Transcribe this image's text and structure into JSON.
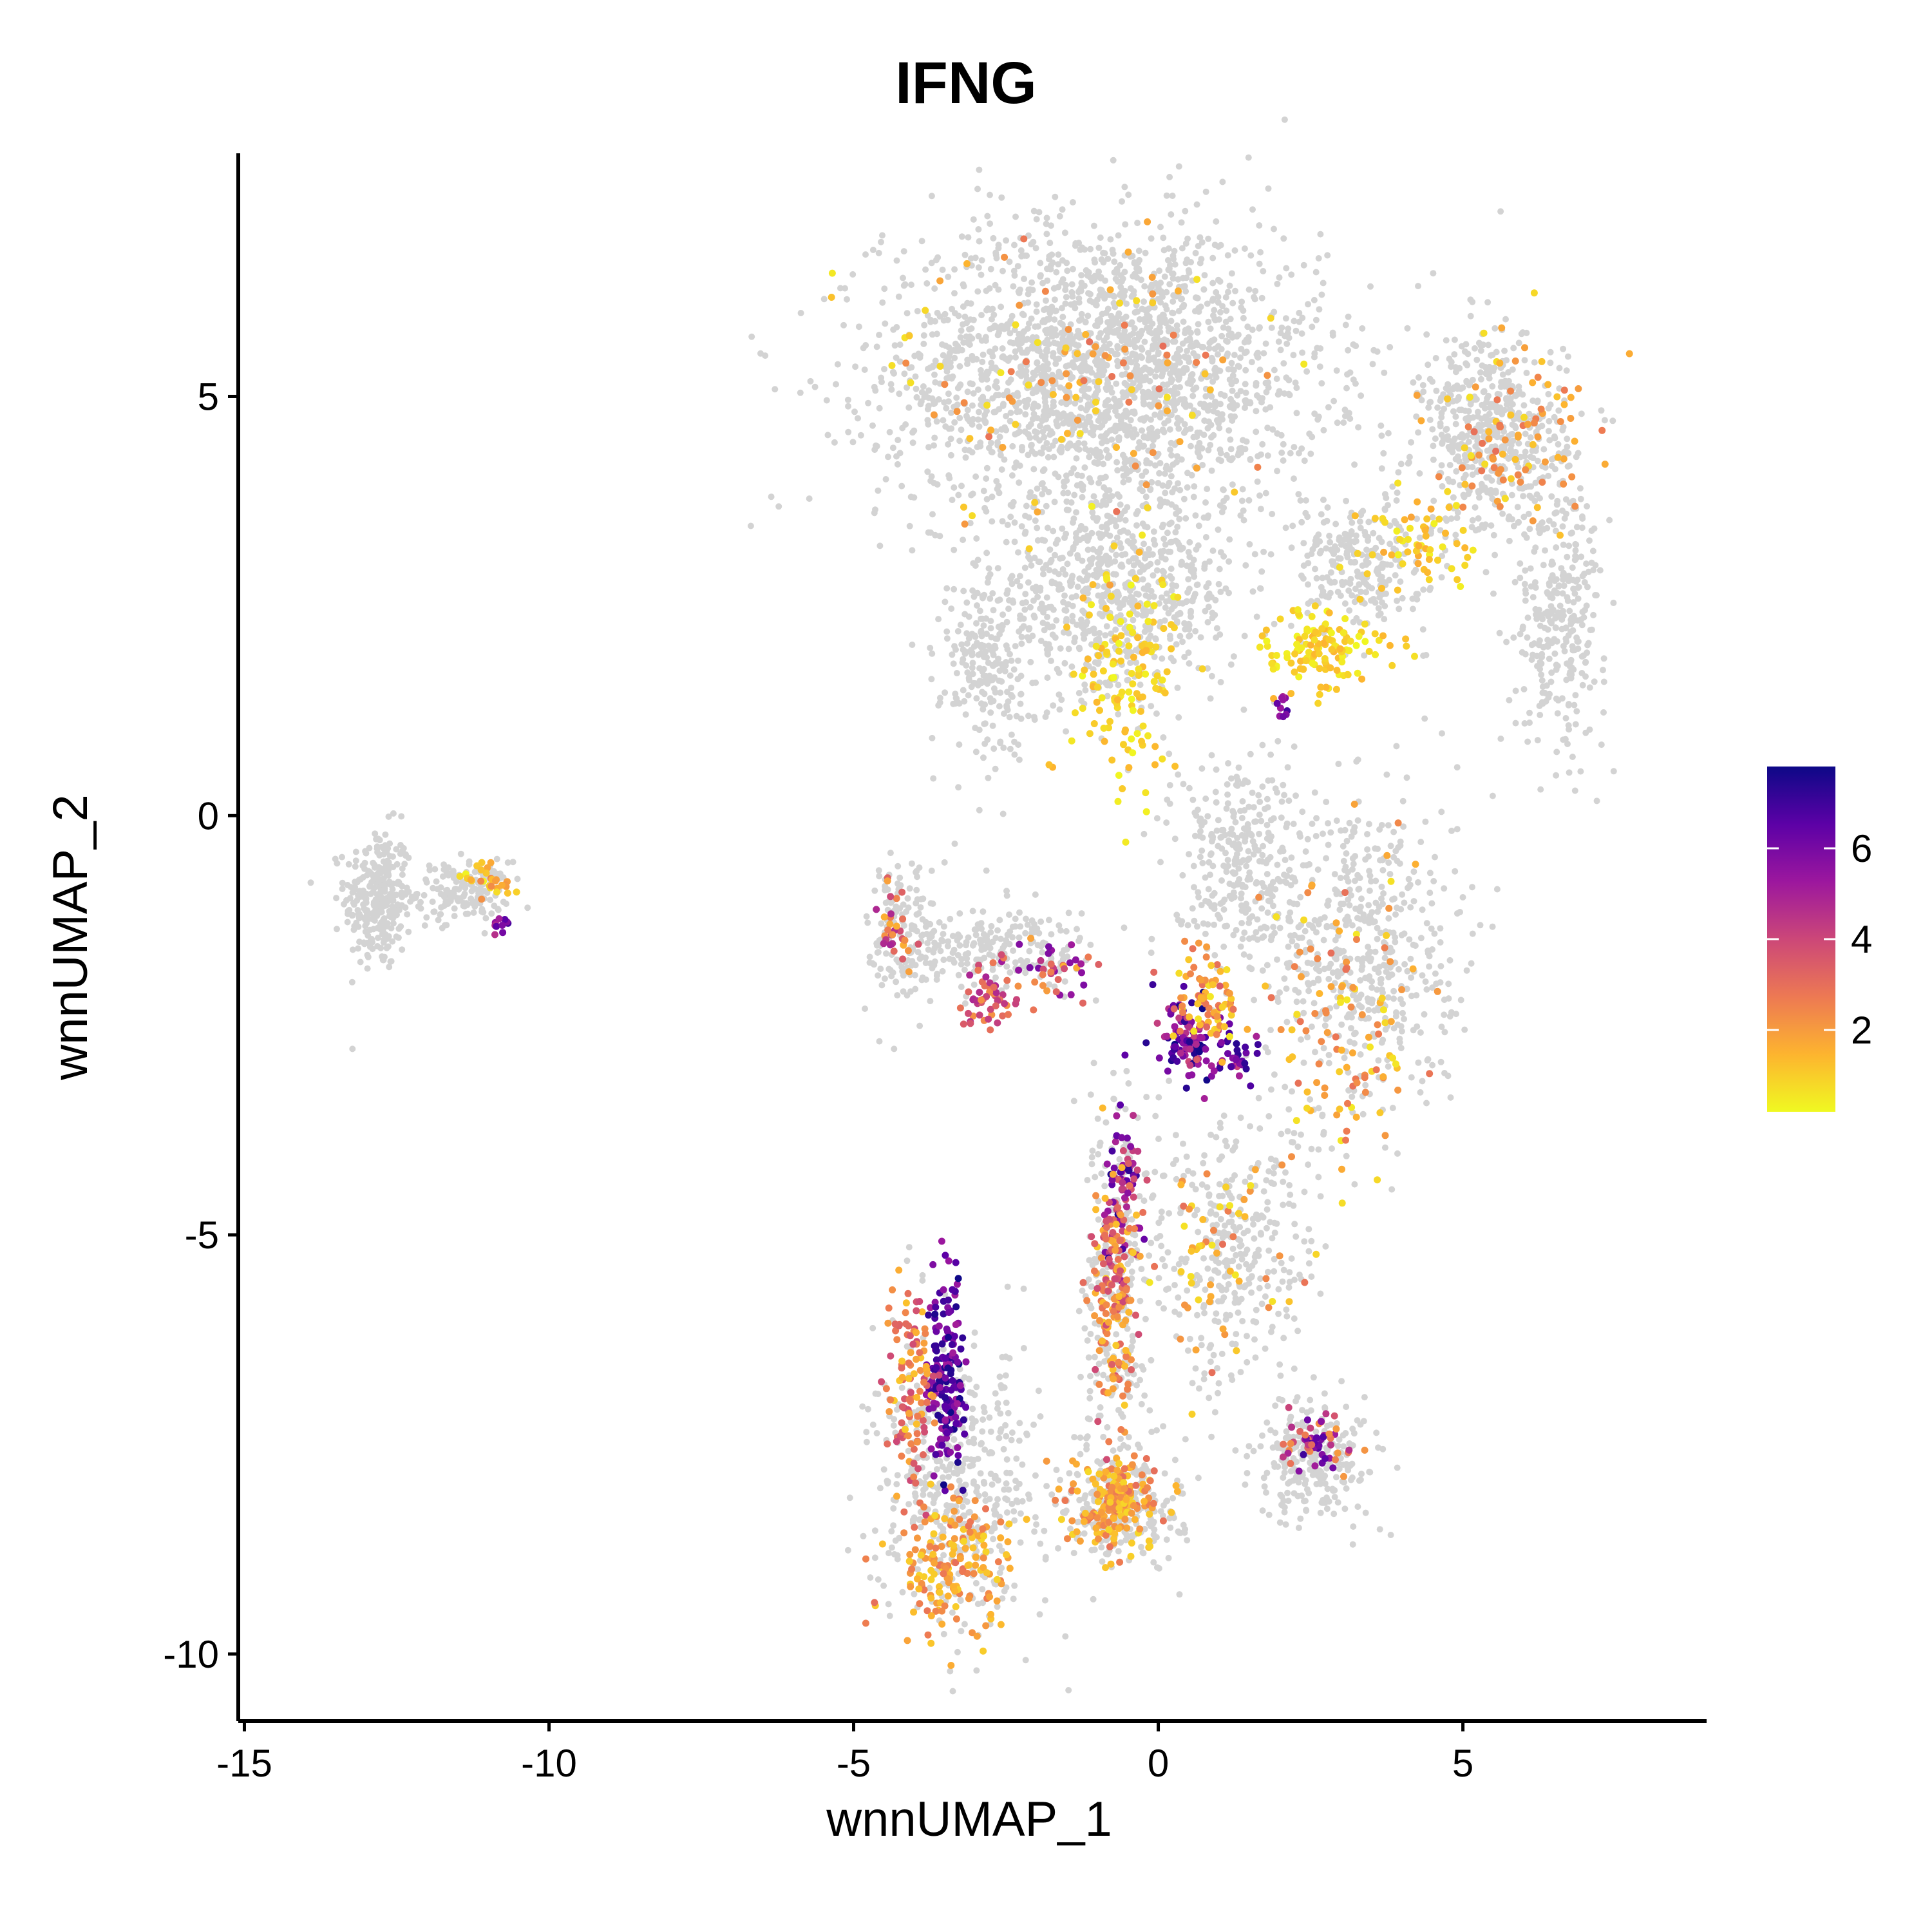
{
  "chart_data": {
    "type": "scatter",
    "title": "IFNG",
    "xlabel": "wnnUMAP_1",
    "ylabel": "wnnUMAP_2",
    "xlim": [
      -15.1,
      9.0
    ],
    "ylim": [
      -10.8,
      7.9
    ],
    "x_ticks": [
      -15,
      -10,
      -5,
      0,
      5
    ],
    "x_tick_labels": [
      "-15",
      "-10",
      "-5",
      "0",
      "5"
    ],
    "y_ticks": [
      -10,
      -5,
      0,
      5
    ],
    "y_tick_labels": [
      "-10",
      "-5",
      "0",
      "5"
    ],
    "grid": false,
    "legend_position": "right",
    "colorbar": {
      "min": 0.2,
      "max": 7.8,
      "ticks": [
        2,
        4,
        6
      ],
      "tick_labels": [
        "2",
        "4",
        "6"
      ],
      "colors": [
        "#f0f921",
        "#fdb42f",
        "#ed7953",
        "#cc4778",
        "#9c179e",
        "#5c01a6",
        "#0d0887"
      ]
    },
    "background_color": "#d3d3d3",
    "clusters": [
      {
        "x": -12.8,
        "y": -1.0,
        "rx": 0.55,
        "ry": 0.85,
        "count": 300
      },
      {
        "x": -11.4,
        "y": -0.9,
        "rx": 0.75,
        "ry": 0.35,
        "count": 160
      },
      {
        "x": -0.9,
        "y": 5.3,
        "rx": 3.6,
        "ry": 1.75,
        "count": 2200
      },
      {
        "x": -0.7,
        "y": 2.6,
        "rx": 2.0,
        "ry": 1.2,
        "count": 700
      },
      {
        "x": -2.8,
        "y": 1.8,
        "rx": 0.75,
        "ry": 1.1,
        "count": 220
      },
      {
        "x": 5.5,
        "y": 4.5,
        "rx": 1.2,
        "ry": 1.2,
        "count": 550
      },
      {
        "x": 6.6,
        "y": 2.4,
        "rx": 0.75,
        "ry": 1.5,
        "count": 300
      },
      {
        "x": 3.3,
        "y": 3.0,
        "rx": 1.1,
        "ry": 0.8,
        "count": 250
      },
      {
        "x": 3.3,
        "y": -1.6,
        "rx": 1.6,
        "ry": 2.0,
        "count": 550
      },
      {
        "x": 1.3,
        "y": -0.5,
        "rx": 1.1,
        "ry": 1.2,
        "count": 300
      },
      {
        "x": 1.2,
        "y": -5.2,
        "rx": 1.4,
        "ry": 1.6,
        "count": 350
      },
      {
        "x": -4.1,
        "y": -1.4,
        "rx": 0.65,
        "ry": 1.0,
        "count": 150
      },
      {
        "x": -2.5,
        "y": -1.6,
        "rx": 1.5,
        "ry": 0.5,
        "count": 200
      },
      {
        "x": -3.3,
        "y": -8.0,
        "rx": 1.35,
        "ry": 1.7,
        "count": 480
      },
      {
        "x": -0.7,
        "y": -5.5,
        "rx": 0.5,
        "ry": 2.2,
        "count": 260
      },
      {
        "x": -0.6,
        "y": -8.2,
        "rx": 1.0,
        "ry": 0.7,
        "count": 260
      },
      {
        "x": 2.6,
        "y": -7.7,
        "rx": 1.0,
        "ry": 0.7,
        "count": 240
      }
    ],
    "expression_points": [
      {
        "x": -11.0,
        "y": -0.8,
        "rx": 0.4,
        "ry": 0.25,
        "count": 30,
        "vmin": 0.3,
        "vmax": 2.5
      },
      {
        "x": -10.8,
        "y": -1.3,
        "rx": 0.15,
        "ry": 0.12,
        "count": 12,
        "vmin": 4.5,
        "vmax": 7.0
      },
      {
        "x": -0.5,
        "y": 1.7,
        "rx": 0.8,
        "ry": 1.4,
        "count": 140,
        "vmin": 0.2,
        "vmax": 1.5
      },
      {
        "x": 2.7,
        "y": 2.0,
        "rx": 1.0,
        "ry": 0.5,
        "count": 130,
        "vmin": 0.2,
        "vmax": 1.5
      },
      {
        "x": 4.3,
        "y": 3.2,
        "rx": 0.9,
        "ry": 0.6,
        "count": 60,
        "vmin": 0.3,
        "vmax": 1.8
      },
      {
        "x": 2.0,
        "y": 1.3,
        "rx": 0.2,
        "ry": 0.15,
        "count": 10,
        "vmin": 4.5,
        "vmax": 7.0
      },
      {
        "x": -1.3,
        "y": 5.1,
        "rx": 3.0,
        "ry": 1.6,
        "count": 110,
        "vmin": 0.5,
        "vmax": 3.0
      },
      {
        "x": 5.8,
        "y": 4.4,
        "rx": 1.2,
        "ry": 1.3,
        "count": 90,
        "vmin": 0.5,
        "vmax": 3.0
      },
      {
        "x": 0.4,
        "y": -2.6,
        "rx": 0.4,
        "ry": 0.5,
        "count": 90,
        "vmin": 4.0,
        "vmax": 7.8
      },
      {
        "x": 1.2,
        "y": -2.9,
        "rx": 0.7,
        "ry": 0.3,
        "count": 45,
        "vmin": 4.0,
        "vmax": 7.5
      },
      {
        "x": 0.8,
        "y": -2.2,
        "rx": 0.6,
        "ry": 0.5,
        "count": 80,
        "vmin": 0.5,
        "vmax": 3.5
      },
      {
        "x": -0.6,
        "y": -4.4,
        "rx": 0.3,
        "ry": 1.0,
        "count": 80,
        "vmin": 3.5,
        "vmax": 7.5
      },
      {
        "x": -0.7,
        "y": -5.6,
        "rx": 0.35,
        "ry": 1.5,
        "count": 160,
        "vmin": 1.0,
        "vmax": 4.0
      },
      {
        "x": -3.5,
        "y": -6.7,
        "rx": 0.3,
        "ry": 1.2,
        "count": 170,
        "vmin": 5.0,
        "vmax": 7.8
      },
      {
        "x": -4.1,
        "y": -6.8,
        "rx": 0.35,
        "ry": 1.2,
        "count": 110,
        "vmin": 1.0,
        "vmax": 4.0
      },
      {
        "x": -3.4,
        "y": -8.9,
        "rx": 1.0,
        "ry": 0.8,
        "count": 170,
        "vmin": 0.8,
        "vmax": 3.0
      },
      {
        "x": -0.7,
        "y": -8.2,
        "rx": 0.8,
        "ry": 0.5,
        "count": 180,
        "vmin": 0.8,
        "vmax": 3.0
      },
      {
        "x": 2.6,
        "y": -7.5,
        "rx": 0.7,
        "ry": 0.35,
        "count": 55,
        "vmin": 2.0,
        "vmax": 7.0
      },
      {
        "x": -2.8,
        "y": -2.2,
        "rx": 0.5,
        "ry": 0.35,
        "count": 50,
        "vmin": 2.0,
        "vmax": 5.0
      },
      {
        "x": -1.8,
        "y": -1.8,
        "rx": 0.8,
        "ry": 0.35,
        "count": 40,
        "vmin": 1.5,
        "vmax": 6.0
      },
      {
        "x": -4.3,
        "y": -1.3,
        "rx": 0.3,
        "ry": 0.6,
        "count": 30,
        "vmin": 1.5,
        "vmax": 5.0
      },
      {
        "x": 3.2,
        "y": -2.5,
        "rx": 1.3,
        "ry": 1.8,
        "count": 110,
        "vmin": 0.5,
        "vmax": 3.0
      },
      {
        "x": 1.0,
        "y": -5.2,
        "rx": 1.2,
        "ry": 1.3,
        "count": 60,
        "vmin": 0.5,
        "vmax": 3.0
      }
    ]
  }
}
